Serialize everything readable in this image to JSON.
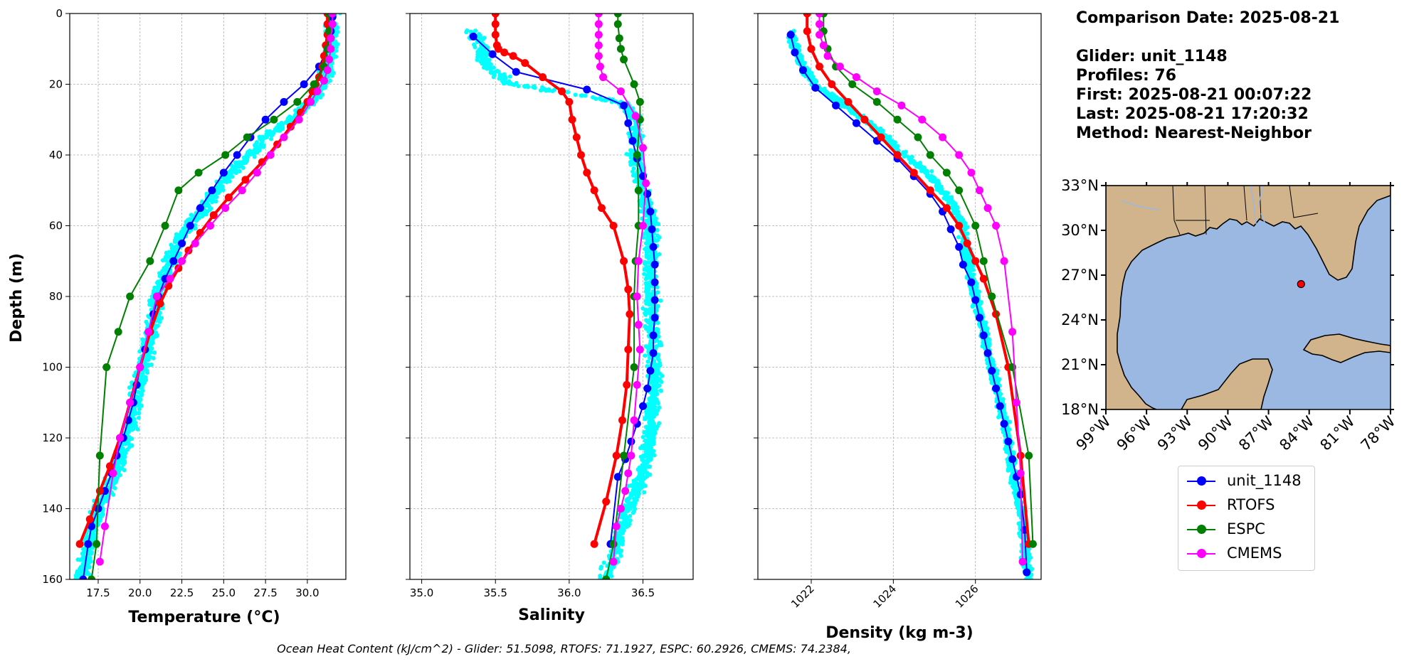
{
  "info": {
    "comparison_date": "Comparison Date: 2025-08-21",
    "glider": "Glider: unit_1148",
    "profiles": "Profiles: 76",
    "first": "First: 2025-08-21 00:07:22",
    "last": "Last: 2025-08-21 17:20:32",
    "method": "Method: Nearest-Neighbor"
  },
  "footer": "Ocean Heat Content (kJ/cm^2) - Glider: 51.5098,  RTOFS: 71.1927,  ESPC: 60.2926,  CMEMS: 74.2384,",
  "colors": {
    "glider": "#0000ff",
    "rtofs": "#ff0000",
    "espc": "#008000",
    "cmems": "#ff00ff",
    "glider_scatter": "#00ffff",
    "grid": "#b0b0b0",
    "land": "#d2b48c",
    "ocean": "#9ab8e2"
  },
  "legend": [
    {
      "label": "unit_1148",
      "color": "#0000ff"
    },
    {
      "label": "RTOFS",
      "color": "#ff0000"
    },
    {
      "label": "ESPC",
      "color": "#008000"
    },
    {
      "label": "CMEMS",
      "color": "#ff00ff"
    }
  ],
  "chart_data": [
    {
      "type": "line",
      "xlabel": "Temperature (°C)",
      "ylabel": "Depth (m)",
      "xlim": [
        15.8,
        32.3
      ],
      "ylim": [
        160,
        0
      ],
      "xticks": [
        17.5,
        20.0,
        22.5,
        25.0,
        27.5,
        30.0
      ],
      "xtick_labels": [
        "17.5",
        "20.0",
        "22.5",
        "25.0",
        "27.5",
        "30.0"
      ],
      "yticks": [
        0,
        20,
        40,
        60,
        80,
        100,
        120,
        140,
        160
      ],
      "grid": true,
      "scatter_band": {
        "name": "glider profiles",
        "color": "#00ffff",
        "center": [
          [
            31.5,
            0
          ],
          [
            31.4,
            12
          ],
          [
            31.0,
            20
          ],
          [
            30.2,
            25
          ],
          [
            29.0,
            30
          ],
          [
            27.5,
            35
          ],
          [
            26.5,
            40
          ],
          [
            25.2,
            46
          ],
          [
            24.3,
            52
          ],
          [
            23.5,
            57
          ],
          [
            22.5,
            63
          ],
          [
            21.8,
            70
          ],
          [
            21.0,
            80
          ],
          [
            20.7,
            90
          ],
          [
            20.2,
            100
          ],
          [
            19.7,
            110
          ],
          [
            19.2,
            120
          ],
          [
            18.5,
            130
          ],
          [
            17.5,
            140
          ],
          [
            17.0,
            150
          ],
          [
            16.5,
            160
          ]
        ],
        "spread": 0.6
      },
      "series": [
        {
          "name": "unit_1148",
          "color": "#0000ff",
          "linewidth": 2,
          "x": [
            31.5,
            31.4,
            31.2,
            30.7,
            29.8,
            28.6,
            27.5,
            26.6,
            25.8,
            25.0,
            24.3,
            23.6,
            23.0,
            22.5,
            22.0,
            21.5,
            21.1,
            20.8,
            20.6,
            20.3,
            20.0,
            19.8,
            19.6,
            19.3,
            19.0,
            18.6,
            18.3,
            17.9,
            17.5,
            17.1,
            16.9,
            16.6
          ],
          "y": [
            1,
            5,
            10,
            15,
            20,
            25,
            30,
            35,
            40,
            45,
            50,
            55,
            60,
            65,
            70,
            75,
            80,
            85,
            90,
            95,
            100,
            105,
            110,
            115,
            120,
            125,
            130,
            135,
            140,
            145,
            150,
            160
          ]
        },
        {
          "name": "RTOFS",
          "color": "#ff0000",
          "linewidth": 4,
          "x": [
            31.2,
            31.2,
            31.2,
            31.1,
            31.0,
            30.9,
            30.7,
            30.5,
            30.3,
            30.0,
            29.6,
            29.0,
            28.2,
            27.3,
            26.3,
            25.3,
            24.4,
            23.6,
            22.9,
            22.3,
            21.7,
            21.2,
            20.6,
            20.0,
            19.4,
            18.8,
            18.2,
            17.6,
            17.0,
            16.4
          ],
          "y": [
            0,
            3,
            6,
            9,
            12,
            15,
            18,
            20,
            22,
            25,
            28,
            32,
            37,
            42,
            47,
            52,
            57,
            62,
            67,
            72,
            77,
            82,
            90,
            100,
            110,
            120,
            128,
            135,
            143,
            150
          ]
        },
        {
          "name": "ESPC",
          "color": "#008000",
          "linewidth": 2,
          "x": [
            31.3,
            31.3,
            31.2,
            31.0,
            30.4,
            29.4,
            28.0,
            26.4,
            25.1,
            23.5,
            22.3,
            21.5,
            20.6,
            19.4,
            18.7,
            18.0,
            17.6,
            17.4,
            17.1
          ],
          "y": [
            0,
            5,
            10,
            15,
            20,
            25,
            30,
            35,
            40,
            45,
            50,
            60,
            70,
            80,
            90,
            100,
            125,
            150,
            160
          ]
        },
        {
          "name": "CMEMS",
          "color": "#ff00ff",
          "linewidth": 2,
          "x": [
            31.5,
            31.5,
            31.4,
            31.4,
            31.3,
            31.2,
            31.0,
            30.6,
            30.2,
            29.5,
            28.6,
            27.8,
            27.0,
            26.1,
            25.1,
            24.2,
            23.3,
            22.5,
            21.8,
            21.0,
            20.5,
            20.0,
            19.4,
            18.8,
            18.4,
            17.9,
            17.6
          ],
          "y": [
            0,
            3,
            7,
            10,
            13,
            16,
            19,
            22,
            25,
            30,
            35,
            40,
            45,
            50,
            55,
            60,
            65,
            70,
            75,
            80,
            90,
            100,
            110,
            120,
            130,
            145,
            155
          ]
        }
      ]
    },
    {
      "type": "line",
      "xlabel": "Salinity",
      "xlim": [
        34.92,
        36.84
      ],
      "ylim": [
        160,
        0
      ],
      "xticks": [
        35.0,
        35.5,
        36.0,
        36.5
      ],
      "xtick_labels": [
        "35.0",
        "35.5",
        "36.0",
        "36.5"
      ],
      "grid": true,
      "scatter_band": {
        "name": "glider profiles",
        "color": "#00ffff",
        "center": [
          [
            35.35,
            5
          ],
          [
            35.4,
            10
          ],
          [
            35.45,
            15
          ],
          [
            35.6,
            20
          ],
          [
            36.35,
            25
          ],
          [
            36.45,
            30
          ],
          [
            36.45,
            40
          ],
          [
            36.5,
            50
          ],
          [
            36.55,
            60
          ],
          [
            36.55,
            70
          ],
          [
            36.55,
            80
          ],
          [
            36.57,
            90
          ],
          [
            36.58,
            100
          ],
          [
            36.57,
            110
          ],
          [
            36.55,
            120
          ],
          [
            36.5,
            130
          ],
          [
            36.4,
            140
          ],
          [
            36.32,
            150
          ],
          [
            36.25,
            160
          ]
        ],
        "spread": 0.07
      },
      "series": [
        {
          "name": "unit_1148",
          "color": "#0000ff",
          "linewidth": 2,
          "x": [
            35.35,
            35.48,
            35.64,
            36.12,
            36.37,
            36.4,
            36.43,
            36.46,
            36.5,
            36.53,
            36.55,
            36.56,
            36.57,
            36.58,
            36.58,
            36.58,
            36.58,
            36.57,
            36.57,
            36.55,
            36.53,
            36.5,
            36.46,
            36.42,
            36.38,
            36.33,
            36.28
          ],
          "y": [
            6.5,
            11.5,
            16.5,
            21.5,
            26,
            31,
            36,
            41,
            46,
            51,
            56,
            61,
            66,
            71,
            76,
            81,
            86,
            91,
            96,
            101,
            106,
            111,
            116,
            121,
            126,
            131,
            150
          ]
        },
        {
          "name": "RTOFS",
          "color": "#ff0000",
          "linewidth": 4,
          "x": [
            35.5,
            35.5,
            35.5,
            35.51,
            35.52,
            35.56,
            35.62,
            35.7,
            35.82,
            35.95,
            36.0,
            36.02,
            36.05,
            36.08,
            36.12,
            36.17,
            36.22,
            36.3,
            36.37,
            36.4,
            36.41,
            36.4,
            36.39,
            36.36,
            36.32,
            36.25,
            36.17
          ],
          "y": [
            0,
            3,
            6,
            9,
            10,
            11,
            12,
            14,
            18,
            22,
            25,
            30,
            35,
            40,
            45,
            50,
            55,
            60,
            70,
            78,
            85,
            95,
            105,
            115,
            125,
            138,
            150
          ]
        },
        {
          "name": "ESPC",
          "color": "#008000",
          "linewidth": 2,
          "x": [
            36.33,
            36.33,
            36.34,
            36.35,
            36.37,
            36.44,
            36.48,
            36.48,
            36.46,
            36.47,
            36.47,
            36.45,
            36.44,
            36.44,
            36.37,
            36.3,
            36.25
          ],
          "y": [
            0,
            3,
            7,
            10,
            13,
            20,
            25,
            30,
            40,
            50,
            60,
            70,
            80,
            100,
            125,
            150,
            160
          ]
        },
        {
          "name": "CMEMS",
          "color": "#ff00ff",
          "linewidth": 2,
          "x": [
            36.2,
            36.2,
            36.2,
            36.2,
            36.2,
            36.21,
            36.23,
            36.35,
            36.45,
            36.5,
            36.52,
            36.5,
            36.47,
            36.46,
            36.47,
            36.48,
            36.46,
            36.44,
            36.42,
            36.4,
            36.38,
            36.35,
            36.32,
            36.3
          ],
          "y": [
            0,
            3,
            6,
            9,
            12,
            15,
            18,
            22,
            29,
            38,
            48,
            60,
            70,
            80,
            88,
            95,
            105,
            115,
            125,
            130,
            135,
            140,
            145,
            155
          ]
        }
      ]
    },
    {
      "type": "line",
      "xlabel": "Density (kg m-3)",
      "xlim": [
        1020.7,
        1027.6
      ],
      "ylim": [
        160,
        0
      ],
      "xticks": [
        1022,
        1024,
        1026
      ],
      "xtick_labels": [
        "1022",
        "1024",
        "1026"
      ],
      "grid": true,
      "scatter_band": {
        "name": "glider profiles",
        "color": "#00ffff",
        "center": [
          [
            1021.5,
            5
          ],
          [
            1021.6,
            10
          ],
          [
            1021.8,
            15
          ],
          [
            1022.1,
            20
          ],
          [
            1022.7,
            25
          ],
          [
            1023.3,
            30
          ],
          [
            1023.8,
            35
          ],
          [
            1024.3,
            40
          ],
          [
            1024.8,
            45
          ],
          [
            1025.2,
            50
          ],
          [
            1025.5,
            55
          ],
          [
            1025.7,
            60
          ],
          [
            1025.8,
            70
          ],
          [
            1026.0,
            80
          ],
          [
            1026.2,
            90
          ],
          [
            1026.4,
            100
          ],
          [
            1026.6,
            110
          ],
          [
            1026.8,
            120
          ],
          [
            1026.9,
            130
          ],
          [
            1027.1,
            140
          ],
          [
            1027.2,
            150
          ],
          [
            1027.3,
            160
          ]
        ],
        "spread": 0.15
      },
      "series": [
        {
          "name": "unit_1148",
          "color": "#0000ff",
          "linewidth": 2,
          "x": [
            1021.5,
            1021.6,
            1021.8,
            1022.1,
            1022.6,
            1023.1,
            1023.6,
            1024.1,
            1024.5,
            1024.9,
            1025.2,
            1025.4,
            1025.6,
            1025.7,
            1025.9,
            1026.0,
            1026.1,
            1026.2,
            1026.3,
            1026.4,
            1026.5,
            1026.6,
            1026.7,
            1026.8,
            1026.9,
            1027.0,
            1027.1,
            1027.2,
            1027.25
          ],
          "y": [
            6,
            11,
            16,
            21,
            26,
            31,
            36,
            41,
            46,
            51,
            56,
            61,
            66,
            71,
            76,
            81,
            86,
            91,
            96,
            101,
            106,
            111,
            116,
            121,
            126,
            131,
            136,
            146,
            158
          ]
        },
        {
          "name": "RTOFS",
          "color": "#ff0000",
          "linewidth": 4,
          "x": [
            1021.9,
            1021.9,
            1022.0,
            1022.2,
            1022.5,
            1022.9,
            1023.3,
            1023.7,
            1024.1,
            1024.5,
            1024.9,
            1025.3,
            1025.6,
            1025.8,
            1026.0,
            1026.2,
            1026.5,
            1026.8,
            1027.1,
            1027.3
          ],
          "y": [
            0,
            5,
            10,
            15,
            20,
            25,
            30,
            35,
            40,
            45,
            50,
            55,
            60,
            65,
            70,
            75,
            85,
            100,
            125,
            150
          ]
        },
        {
          "name": "ESPC",
          "color": "#008000",
          "linewidth": 2,
          "x": [
            1022.3,
            1022.3,
            1022.4,
            1022.6,
            1023.0,
            1023.6,
            1024.1,
            1024.6,
            1024.9,
            1025.3,
            1025.6,
            1026.0,
            1026.2,
            1026.4,
            1026.9,
            1027.3,
            1027.4
          ],
          "y": [
            0,
            5,
            10,
            15,
            20,
            25,
            30,
            35,
            40,
            45,
            50,
            60,
            70,
            80,
            100,
            125,
            150
          ]
        },
        {
          "name": "CMEMS",
          "color": "#ff00ff",
          "linewidth": 2,
          "x": [
            1022.2,
            1022.2,
            1022.2,
            1022.3,
            1022.4,
            1022.7,
            1023.1,
            1023.6,
            1024.2,
            1024.7,
            1025.2,
            1025.6,
            1025.9,
            1026.1,
            1026.3,
            1026.5,
            1026.7,
            1026.9,
            1027.0,
            1027.1,
            1027.15
          ],
          "y": [
            0,
            3,
            6,
            9,
            12,
            15,
            18,
            22,
            26,
            30,
            35,
            40,
            45,
            50,
            55,
            60,
            70,
            90,
            110,
            130,
            155
          ]
        }
      ]
    },
    {
      "type": "map",
      "lon_range": [
        -99,
        -78
      ],
      "lat_range": [
        18,
        33
      ],
      "xtick_labels": [
        "99°W",
        "96°W",
        "93°W",
        "90°W",
        "87°W",
        "84°W",
        "81°W",
        "78°W"
      ],
      "ytick_labels": [
        "33°N",
        "30°N",
        "27°N",
        "24°N",
        "21°N",
        "18°N"
      ],
      "glider_position": {
        "lon": -84.6,
        "lat": 26.4
      }
    }
  ]
}
